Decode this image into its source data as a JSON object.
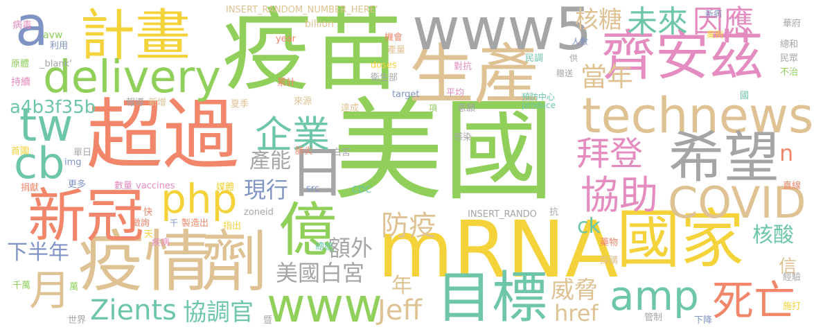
{
  "colors": {
    "green": "#8fcf5a",
    "yellow": "#f4d23a",
    "orange": "#f2866a",
    "tan": "#dfc293",
    "pink": "#e48bbf",
    "gray": "#a5a5a5",
    "blue": "#7f93c4",
    "teal": "#6cc6a7",
    "lime": "#b5d75a"
  },
  "words": [
    {
      "text": "美國",
      "color": "#8fcf5a"
    },
    {
      "text": "疫苗",
      "color": "#8fcf5a"
    },
    {
      "text": "超過",
      "color": "#f2866a"
    },
    {
      "text": "mRNA",
      "color": "#f4d23a"
    },
    {
      "text": "疫情",
      "color": "#dfc293"
    },
    {
      "text": "劑",
      "color": "#dfc293"
    },
    {
      "text": "國家",
      "color": "#f4d23a"
    },
    {
      "text": "生產",
      "color": "#dfc293"
    },
    {
      "text": "www5",
      "color": "#a5a5a5"
    },
    {
      "text": "technews",
      "color": "#dfc293"
    },
    {
      "text": "齊安茲",
      "color": "#e48bbf"
    },
    {
      "text": "計畫",
      "color": "#f4d23a"
    },
    {
      "text": "新冠",
      "color": "#f2866a"
    },
    {
      "text": "希望",
      "color": "#a5a5a5"
    },
    {
      "text": "delivery",
      "color": "#8fcf5a"
    },
    {
      "text": "目標",
      "color": "#6cc6a7"
    },
    {
      "text": "億",
      "color": "#8fcf5a"
    },
    {
      "text": "COVID",
      "color": "#dfc293"
    },
    {
      "text": "www",
      "color": "#8fcf5a"
    },
    {
      "text": "tw",
      "color": "#6cc6a7"
    },
    {
      "text": "cb",
      "color": "#6cc6a7"
    },
    {
      "text": "a",
      "color": "#7f93c4"
    },
    {
      "text": "日",
      "color": "#a5a5a5"
    },
    {
      "text": "企業",
      "color": "#6cc6a7"
    },
    {
      "text": "php",
      "color": "#f4d23a"
    },
    {
      "text": "amp",
      "color": "#6cc6a7"
    },
    {
      "text": "協助",
      "color": "#e48bbf"
    },
    {
      "text": "拜登",
      "color": "#e48bbf"
    },
    {
      "text": "月",
      "color": "#dfc293"
    },
    {
      "text": "死亡",
      "color": "#f2866a"
    },
    {
      "text": "核糖",
      "color": "#dfc293"
    },
    {
      "text": "未來",
      "color": "#6cc6a7"
    },
    {
      "text": "因應",
      "color": "#e48bbf"
    },
    {
      "text": "當年",
      "color": "#dfc293"
    },
    {
      "text": "a4b3f35b",
      "color": "#6cc6a7"
    },
    {
      "text": "產能",
      "color": "#a5a5a5"
    },
    {
      "text": "現行",
      "color": "#7f93c4"
    },
    {
      "text": "額外",
      "color": "#a5a5a5"
    },
    {
      "text": "防疫",
      "color": "#dfc293"
    },
    {
      "text": "美國白宮",
      "color": "#a5a5a5"
    },
    {
      "text": "ck",
      "color": "#6cc6a7"
    },
    {
      "text": "核酸",
      "color": "#6cc6a7"
    },
    {
      "text": "Zients",
      "color": "#6cc6a7"
    },
    {
      "text": "協調官",
      "color": "#6cc6a7"
    },
    {
      "text": "Jeff",
      "color": "#dfc293"
    },
    {
      "text": "威脅",
      "color": "#dfc293"
    },
    {
      "text": "href",
      "color": "#dfc293"
    },
    {
      "text": "下半年",
      "color": "#7f93c4"
    },
    {
      "text": "年",
      "color": "#dfc293"
    },
    {
      "text": "n",
      "color": "#f2866a"
    },
    {
      "text": "信",
      "color": "#dfc293"
    },
    {
      "text": "INSERT_RANDOM_NUMBER_HERE'",
      "color": "#dfc293"
    },
    {
      "text": "billion",
      "color": "#dfc293"
    },
    {
      "text": "病毒",
      "color": "#e48bbf"
    },
    {
      "text": "avw",
      "color": "#8fcf5a"
    },
    {
      "text": "利用",
      "color": "#7f93c4"
    },
    {
      "text": "原體",
      "color": "#8fcf5a"
    },
    {
      "text": "_blank'",
      "color": "#a5a5a5"
    },
    {
      "text": "持續",
      "color": "#e48bbf"
    },
    {
      "text": "year",
      "color": "#f2866a"
    },
    {
      "text": "機會",
      "color": "#f2866a"
    },
    {
      "text": "產量",
      "color": "#dfc293"
    },
    {
      "text": "doses",
      "color": "#f4d23a"
    },
    {
      "text": "衛生部",
      "color": "#a5a5a5"
    },
    {
      "text": "累計",
      "color": "#f2866a"
    },
    {
      "text": "target",
      "color": "#7f93c4"
    },
    {
      "text": "平均",
      "color": "#e48bbf"
    },
    {
      "text": "對抗",
      "color": "#e48bbf"
    },
    {
      "text": "民調",
      "color": "#6cc6a7"
    },
    {
      "text": "贈送",
      "color": "#a5a5a5"
    },
    {
      "text": "供",
      "color": "#a5a5a5"
    },
    {
      "text": "案例",
      "color": "#f4d23a"
    },
    {
      "text": "新病",
      "color": "#7f93c4"
    },
    {
      "text": "人數",
      "color": "#7f93c4"
    },
    {
      "text": "預防中心",
      "color": "#6cc6a7"
    },
    {
      "text": "produce",
      "color": "#6cc6a7"
    },
    {
      "text": "意願",
      "color": "#a5a5a5"
    },
    {
      "text": "項",
      "color": "#8fcf5a"
    },
    {
      "text": "達成",
      "color": "#dfc293"
    },
    {
      "text": "夏季",
      "color": "#dfc293"
    },
    {
      "text": "來源",
      "color": "#dfc293"
    },
    {
      "text": "報導",
      "color": "#a5a5a5"
    },
    {
      "text": "新增",
      "color": "#dfc293"
    },
    {
      "text": "首圖",
      "color": "#f4d23a"
    },
    {
      "text": "單日",
      "color": "#a5a5a5"
    },
    {
      "text": "img",
      "color": "#7f93c4"
    },
    {
      "text": "捐獻",
      "color": "#f2866a"
    },
    {
      "text": "更多",
      "color": "#7f93c4"
    },
    {
      "text": "數量",
      "color": "#e48bbf"
    },
    {
      "text": "vaccines",
      "color": "#e48bbf"
    },
    {
      "text": "媒體",
      "color": "#f4d23a"
    },
    {
      "text": "src",
      "color": "#7f93c4"
    },
    {
      "text": "CDC",
      "color": "#6cc6a7"
    },
    {
      "text": "感染",
      "color": "#a5a5a5"
    },
    {
      "text": "肺炎",
      "color": "#f2866a"
    },
    {
      "text": "白宮",
      "color": "#a5a5a5"
    },
    {
      "text": "zoneid",
      "color": "#a5a5a5"
    },
    {
      "text": "INSERT_RANDO",
      "color": "#a5a5a5"
    },
    {
      "text": "快",
      "color": "#f2866a"
    },
    {
      "text": "徵詢",
      "color": "#f2866a"
    },
    {
      "text": "天",
      "color": "#f4d23a"
    },
    {
      "text": "千",
      "color": "#7f93c4"
    },
    {
      "text": "製造出",
      "color": "#f2866a"
    },
    {
      "text": "指出",
      "color": "#f4d23a"
    },
    {
      "text": "疾病",
      "color": "#e48bbf"
    },
    {
      "text": "總統",
      "color": "#6cc6a7"
    },
    {
      "text": "抗",
      "color": "#a5a5a5"
    },
    {
      "text": "藥物",
      "color": "#f2866a"
    },
    {
      "text": "採購",
      "color": "#dfc293"
    },
    {
      "text": "華府",
      "color": "#a5a5a5"
    },
    {
      "text": "總和",
      "color": "#a5a5a5"
    },
    {
      "text": "民眾",
      "color": "#a5a5a5"
    },
    {
      "text": "不治",
      "color": "#8fcf5a"
    },
    {
      "text": "國",
      "color": "#6cc6a7"
    },
    {
      "text": "直線",
      "color": "#f2866a"
    },
    {
      "text": "經驗",
      "color": "#a5a5a5"
    },
    {
      "text": "千萬",
      "color": "#8fcf5a"
    },
    {
      "text": "萬",
      "color": "#8fcf5a"
    },
    {
      "text": "世界",
      "color": "#a5a5a5"
    },
    {
      "text": "暨",
      "color": "#a5a5a5"
    },
    {
      "text": "管制",
      "color": "#a5a5a5"
    },
    {
      "text": "下降",
      "color": "#7f93c4"
    },
    {
      "text": "施打",
      "color": "#f4d23a"
    }
  ]
}
